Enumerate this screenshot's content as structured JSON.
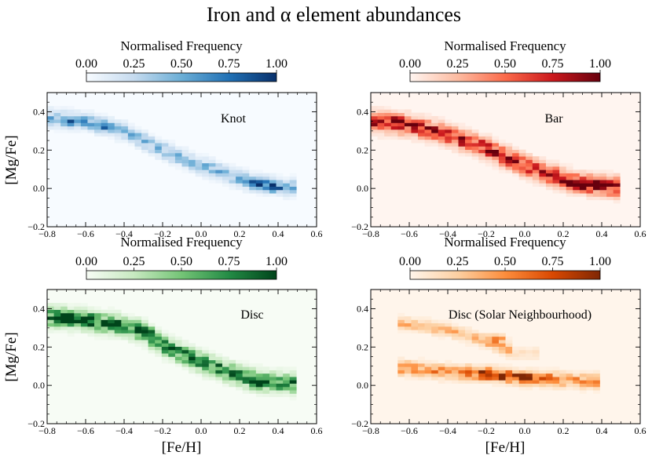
{
  "figure": {
    "title": "Iron and α element abundances",
    "xlabel": "[Fe/H]",
    "ylabel": "[Mg/Fe]"
  },
  "colorbar": {
    "label": "Normalised Frequency",
    "ticks": [
      "0.00",
      "0.25",
      "0.50",
      "0.75",
      "1.00"
    ]
  },
  "colormaps": {
    "Blues": [
      "#f7fbff",
      "#c6dbef",
      "#6baed6",
      "#2171b5",
      "#08306b"
    ],
    "Reds": [
      "#fff5f0",
      "#fcbba1",
      "#fb6a4a",
      "#cb181d",
      "#67000d"
    ],
    "Greens": [
      "#f7fcf5",
      "#c7e9c0",
      "#74c476",
      "#238b45",
      "#00441b"
    ],
    "Oranges": [
      "#fff5eb",
      "#fdd0a2",
      "#fd8d3c",
      "#d94801",
      "#7f2704"
    ]
  },
  "chart_data": [
    {
      "type": "heatmap",
      "name": "Knot",
      "label": "Knot",
      "cmap": "Blues",
      "xlim": [
        -0.8,
        0.6
      ],
      "ylim": [
        -0.2,
        0.5
      ],
      "xticks": [
        "−0.8",
        "−0.6",
        "−0.4",
        "−0.2",
        "0.0",
        "0.2",
        "0.4",
        "0.6"
      ],
      "yticks": [
        "−0.2",
        "0.0",
        "0.2",
        "0.4"
      ],
      "bin_size": [
        0.035,
        0.0175
      ],
      "ridge": [
        [
          -0.8,
          0.37
        ],
        [
          -0.6,
          0.35
        ],
        [
          -0.4,
          0.3
        ],
        [
          -0.2,
          0.2
        ],
        [
          0.0,
          0.12
        ],
        [
          0.2,
          0.05
        ],
        [
          0.3,
          0.025
        ],
        [
          0.45,
          0.005
        ]
      ],
      "width": 0.04,
      "hotspots": [
        [
          0.3,
          0.02,
          1.0
        ],
        [
          -0.5,
          0.33,
          0.55
        ],
        [
          -0.66,
          0.35,
          0.45
        ],
        [
          0.38,
          0.01,
          0.55
        ]
      ],
      "base_density": 0.45,
      "seed": 11
    },
    {
      "type": "heatmap",
      "name": "Bar",
      "label": "Bar",
      "cmap": "Reds",
      "xlim": [
        -0.8,
        0.6
      ],
      "ylim": [
        -0.2,
        0.5
      ],
      "xticks": [
        "−0.8",
        "−0.6",
        "−0.4",
        "−0.2",
        "0.0",
        "0.2",
        "0.4",
        "0.6"
      ],
      "yticks": [
        "−0.2",
        "0.0",
        "0.2",
        "0.4"
      ],
      "bin_size": [
        0.035,
        0.0175
      ],
      "ridge": [
        [
          -0.8,
          0.35
        ],
        [
          -0.6,
          0.33
        ],
        [
          -0.4,
          0.28
        ],
        [
          -0.2,
          0.21
        ],
        [
          0.0,
          0.12
        ],
        [
          0.2,
          0.05
        ],
        [
          0.3,
          0.025
        ],
        [
          0.45,
          0.01
        ]
      ],
      "width": 0.045,
      "hotspots": [
        [
          0.3,
          0.02,
          1.0
        ],
        [
          -0.66,
          0.35,
          0.75
        ],
        [
          0.22,
          0.03,
          0.6
        ],
        [
          0.38,
          0.015,
          0.6
        ]
      ],
      "base_density": 0.85,
      "seed": 23
    },
    {
      "type": "heatmap",
      "name": "Disc",
      "label": "Disc",
      "cmap": "Greens",
      "xlim": [
        -0.8,
        0.6
      ],
      "ylim": [
        -0.2,
        0.5
      ],
      "xticks": [
        "−0.8",
        "−0.6",
        "−0.4",
        "−0.2",
        "0.0",
        "0.2",
        "0.4",
        "0.6"
      ],
      "yticks": [
        "−0.2",
        "0.0",
        "0.2",
        "0.4"
      ],
      "bin_size": [
        0.035,
        0.0175
      ],
      "ridge": [
        [
          -0.8,
          0.36
        ],
        [
          -0.6,
          0.34
        ],
        [
          -0.4,
          0.31
        ],
        [
          -0.3,
          0.28
        ],
        [
          -0.2,
          0.21
        ],
        [
          0.0,
          0.12
        ],
        [
          0.2,
          0.05
        ],
        [
          0.3,
          0.025
        ],
        [
          0.45,
          0.01
        ]
      ],
      "width": 0.045,
      "hotspots": [
        [
          -0.7,
          0.36,
          1.0
        ],
        [
          -0.6,
          0.34,
          0.8
        ],
        [
          -0.44,
          0.32,
          0.85
        ],
        [
          0.3,
          0.02,
          0.85
        ],
        [
          -0.3,
          0.29,
          0.6
        ]
      ],
      "base_density": 0.85,
      "seed": 37
    },
    {
      "type": "heatmap",
      "name": "Disc (Solar Neighbourhood)",
      "label": "Disc (Solar Neighbourhood)",
      "cmap": "Oranges",
      "xlim": [
        -0.8,
        0.6
      ],
      "ylim": [
        -0.2,
        0.5
      ],
      "xticks": [
        "−0.8",
        "−0.6",
        "−0.4",
        "−0.2",
        "0.0",
        "0.2",
        "0.4",
        "0.6"
      ],
      "yticks": [
        "−0.2",
        "0.0",
        "0.2",
        "0.4"
      ],
      "bin_size": [
        0.035,
        0.0175
      ],
      "ridge": [
        [
          -0.6,
          0.09
        ],
        [
          -0.4,
          0.07
        ],
        [
          -0.2,
          0.06
        ],
        [
          0.0,
          0.04
        ],
        [
          0.2,
          0.03
        ],
        [
          0.35,
          0.02
        ]
      ],
      "width": 0.035,
      "ridge2": [
        [
          -0.6,
          0.32
        ],
        [
          -0.4,
          0.29
        ],
        [
          -0.2,
          0.23
        ],
        [
          -0.05,
          0.17
        ]
      ],
      "width2": 0.03,
      "hotspots": [
        [
          -0.1,
          0.05,
          1.0
        ],
        [
          0.0,
          0.04,
          0.85
        ],
        [
          -0.3,
          0.07,
          0.8
        ],
        [
          -0.2,
          0.06,
          0.75
        ],
        [
          -0.15,
          0.24,
          0.7
        ],
        [
          0.1,
          0.035,
          0.6
        ]
      ],
      "base_density": 0.5,
      "seed": 53
    }
  ]
}
